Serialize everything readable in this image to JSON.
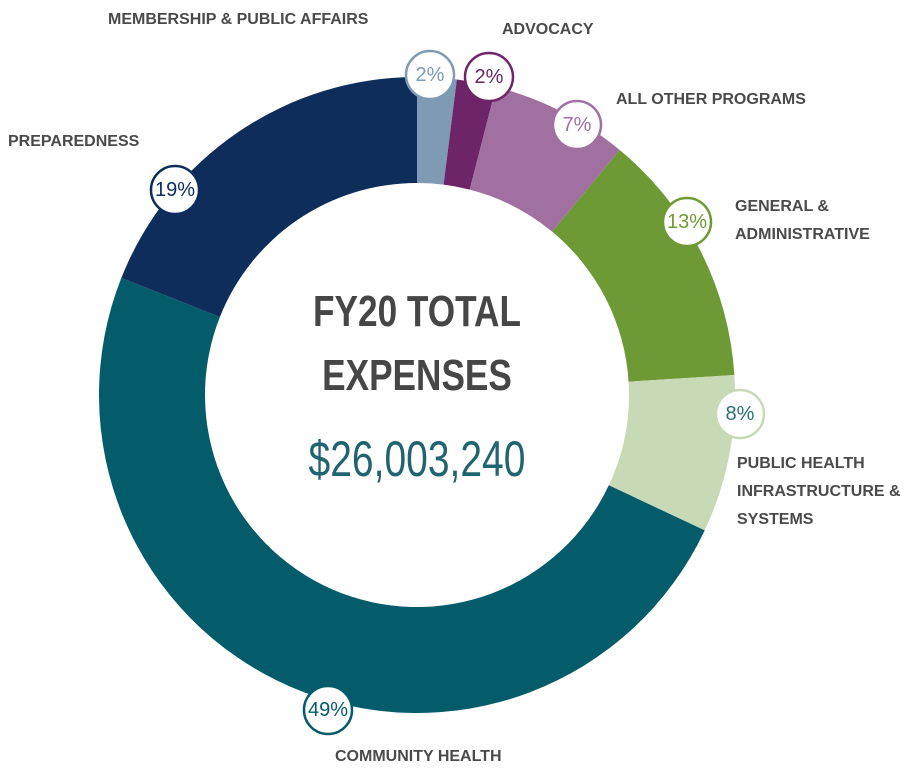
{
  "chart_data": {
    "type": "donut",
    "title": "FY20 TOTAL EXPENSES",
    "total": "$26,003,240",
    "categories": [
      "MEMBERSHIP & PUBLIC AFFAIRS",
      "ADVOCACY",
      "ALL OTHER PROGRAMS",
      "GENERAL & ADMINISTRATIVE",
      "PUBLIC HEALTH INFRASTRUCTURE & SYSTEMS",
      "COMMUNITY HEALTH",
      "PREPAREDNESS"
    ],
    "values": [
      2,
      2,
      7,
      13,
      8,
      49,
      19
    ],
    "value_labels": [
      "2%",
      "2%",
      "7%",
      "13%",
      "8%",
      "49%",
      "19%"
    ],
    "colors": [
      "#7f9ab3",
      "#6e2568",
      "#a070a0",
      "#6e9a35",
      "#c8d9b5",
      "#045c6b",
      "#0e2d5b"
    ]
  }
}
